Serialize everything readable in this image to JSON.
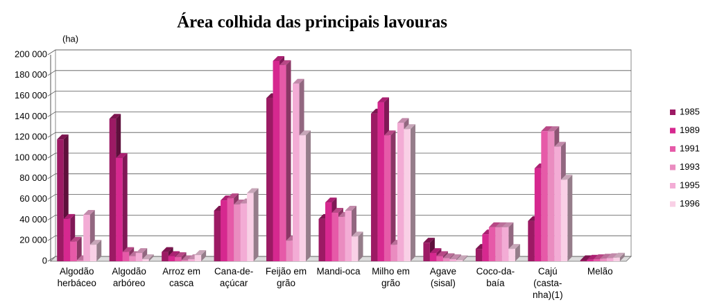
{
  "chart_data": {
    "type": "bar3d",
    "title": "Área colhida das principais lavouras",
    "y_label": "(ha)",
    "categories": [
      "Algodão herbáceo",
      "Algodão arbóreo",
      "Arroz em casca",
      "Cana-de-açúcar",
      "Feijão em grão",
      "Mandi-oca",
      "Milho em grão",
      "Agave (sisal)",
      "Coco-da-baía",
      "Cajú (casta-nha)(1)",
      "Melão"
    ],
    "series": [
      {
        "name": "1985",
        "color": "#9c1a64",
        "values": [
          118000,
          138000,
          9000,
          49000,
          158000,
          41000,
          143000,
          18000,
          12000,
          39000,
          1000
        ]
      },
      {
        "name": "1989",
        "color": "#d6288f",
        "values": [
          41000,
          100000,
          5000,
          59000,
          194000,
          57000,
          154000,
          8000,
          26000,
          90000,
          1500
        ]
      },
      {
        "name": "1991",
        "color": "#e65aa8",
        "values": [
          19000,
          9000,
          4000,
          61000,
          190000,
          47000,
          122000,
          5000,
          33000,
          126000,
          2000
        ]
      },
      {
        "name": "1993",
        "color": "#ea8cc0",
        "values": [
          1000,
          5000,
          1000,
          55000,
          20000,
          43000,
          16000,
          3000,
          33000,
          126000,
          2500
        ]
      },
      {
        "name": "1995",
        "color": "#f3acd5",
        "values": [
          45000,
          8000,
          2000,
          56000,
          172000,
          49000,
          134000,
          2000,
          33000,
          111000,
          3000
        ]
      },
      {
        "name": "1996",
        "color": "#f9d0e6",
        "values": [
          16000,
          2000,
          6000,
          66000,
          122000,
          24000,
          128000,
          1000,
          12000,
          79000,
          3500
        ]
      }
    ],
    "ylim": [
      0,
      200000
    ],
    "yticks": [
      0,
      {
        "value": 20000,
        "label": "20 000"
      },
      {
        "value": 40000,
        "label": "40 000"
      },
      {
        "value": 60000,
        "label": "60 000"
      },
      {
        "value": 80000,
        "label": "80 000"
      },
      {
        "value": 100000,
        "label": "100 000"
      },
      {
        "value": 120000,
        "label": "120 000"
      },
      {
        "value": 140000,
        "label": "140 000"
      },
      {
        "value": 160000,
        "label": "160 000"
      },
      {
        "value": 180000,
        "label": "180 000"
      },
      {
        "value": 200000,
        "label": "200 000"
      }
    ],
    "grid": true,
    "legend": "right"
  }
}
